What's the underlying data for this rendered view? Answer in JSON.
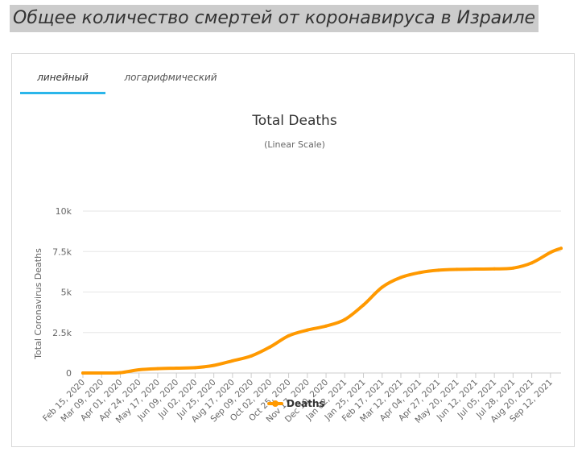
{
  "page": {
    "heading": "Общее количество смертей от коронавируса в Израиле"
  },
  "tabs": [
    {
      "label": "линейный",
      "active": true
    },
    {
      "label": "логарифмический",
      "active": false
    }
  ],
  "colors": {
    "series": "#ff9900",
    "tab_accent": "#2bb6ea",
    "heading_bg": "#cccccc"
  },
  "chart_data": {
    "type": "line",
    "title": "Total Deaths",
    "subtitle": "(Linear Scale)",
    "xlabel": "",
    "ylabel": "Total Coronavirus Deaths",
    "ylim": [
      0,
      10000
    ],
    "y_ticks": [
      0,
      2500,
      5000,
      7500,
      10000
    ],
    "y_tick_labels": [
      "0",
      "2.5k",
      "5k",
      "7.5k",
      "10k"
    ],
    "x_tick_labels": [
      "Feb 15, 2020",
      "Mar 09, 2020",
      "Apr 01, 2020",
      "Apr 24, 2020",
      "May 17, 2020",
      "Jun 09, 2020",
      "Jul 02, 2020",
      "Jul 25, 2020",
      "Aug 17, 2020",
      "Sep 09, 2020",
      "Oct 02, 2020",
      "Oct 25, 2020",
      "Nov 17, 2020",
      "Dec 10, 2020",
      "Jan 02, 2021",
      "Jan 25, 2021",
      "Feb 17, 2021",
      "Mar 12, 2021",
      "Apr 04, 2021",
      "Apr 27, 2021",
      "May 20, 2021",
      "Jun 12, 2021",
      "Jul 05, 2021",
      "Jul 28, 2021",
      "Aug 20, 2021",
      "Sep 12, 2021"
    ],
    "x_range": [
      "Feb 15, 2020",
      "Sep 25, 2021"
    ],
    "grid": true,
    "legend": "bottom-center",
    "series": [
      {
        "name": "Deaths",
        "color": "#ff9900",
        "points": [
          [
            "Feb 15, 2020",
            0
          ],
          [
            "Mar 09, 2020",
            0
          ],
          [
            "Apr 01, 2020",
            20
          ],
          [
            "Apr 24, 2020",
            200
          ],
          [
            "May 17, 2020",
            270
          ],
          [
            "Jun 09, 2020",
            300
          ],
          [
            "Jul 02, 2020",
            330
          ],
          [
            "Jul 25, 2020",
            470
          ],
          [
            "Aug 17, 2020",
            750
          ],
          [
            "Sep 09, 2020",
            1050
          ],
          [
            "Oct 02, 2020",
            1600
          ],
          [
            "Oct 25, 2020",
            2300
          ],
          [
            "Nov 17, 2020",
            2650
          ],
          [
            "Dec 10, 2020",
            2900
          ],
          [
            "Jan 02, 2021",
            3300
          ],
          [
            "Jan 25, 2021",
            4200
          ],
          [
            "Feb 17, 2021",
            5300
          ],
          [
            "Mar 12, 2021",
            5900
          ],
          [
            "Apr 04, 2021",
            6200
          ],
          [
            "Apr 27, 2021",
            6350
          ],
          [
            "May 20, 2021",
            6400
          ],
          [
            "Jun 12, 2021",
            6420
          ],
          [
            "Jul 05, 2021",
            6430
          ],
          [
            "Jul 28, 2021",
            6480
          ],
          [
            "Aug 20, 2021",
            6800
          ],
          [
            "Sep 12, 2021",
            7450
          ],
          [
            "Sep 25, 2021",
            7700
          ]
        ]
      }
    ]
  }
}
